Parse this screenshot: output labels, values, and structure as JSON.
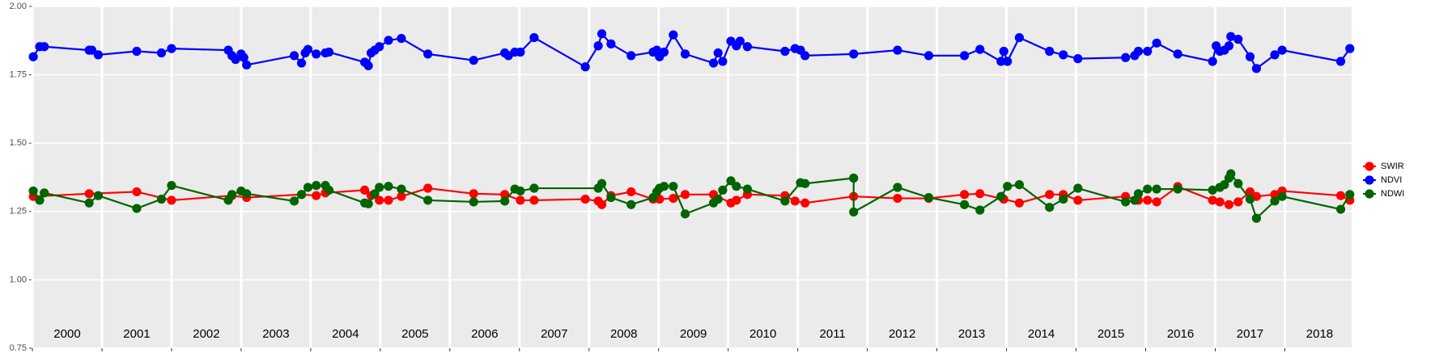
{
  "chart_data": {
    "type": "line",
    "xlim": [
      2000.0,
      2018.96
    ],
    "xticks": [
      {
        "value": 2000,
        "label": "2000"
      },
      {
        "value": 2001,
        "label": "2001"
      },
      {
        "value": 2002,
        "label": "2002"
      },
      {
        "value": 2003,
        "label": "2003"
      },
      {
        "value": 2004,
        "label": "2004"
      },
      {
        "value": 2005,
        "label": "2005"
      },
      {
        "value": 2006,
        "label": "2006"
      },
      {
        "value": 2007,
        "label": "2007"
      },
      {
        "value": 2008,
        "label": "2008"
      },
      {
        "value": 2009,
        "label": "2009"
      },
      {
        "value": 2010,
        "label": "2010"
      },
      {
        "value": 2011,
        "label": "2011"
      },
      {
        "value": 2012,
        "label": "2012"
      },
      {
        "value": 2013,
        "label": "2013"
      },
      {
        "value": 2014,
        "label": "2014"
      },
      {
        "value": 2015,
        "label": "2015"
      },
      {
        "value": 2016,
        "label": "2016"
      },
      {
        "value": 2017,
        "label": "2017"
      },
      {
        "value": 2018,
        "label": "2018"
      }
    ],
    "ylim": [
      0.75,
      2.0
    ],
    "yticks": [
      {
        "value": 0.75,
        "label": "0.75"
      },
      {
        "value": 1.0,
        "label": "1.00"
      },
      {
        "value": 1.25,
        "label": "1.25"
      },
      {
        "value": 1.5,
        "label": "1.50"
      },
      {
        "value": 1.75,
        "label": "1.75"
      },
      {
        "value": 2.0,
        "label": "2.00"
      }
    ],
    "grid": true,
    "legend": "right",
    "series": [
      {
        "name": "SWIR",
        "color": "#ff0000",
        "x": [
          2000.013,
          2000.816,
          2001.5,
          2002.0,
          2002.868,
          2003.079,
          2003.868,
          2004.079,
          2004.211,
          2004.776,
          2004.868,
          2004.987,
          2005.118,
          2005.303,
          2005.684,
          2006.342,
          2006.789,
          2007.013,
          2007.211,
          2007.947,
          2008.132,
          2008.184,
          2008.316,
          2008.605,
          2008.921,
          2009.013,
          2009.211,
          2009.382,
          2009.789,
          2010.039,
          2010.118,
          2010.276,
          2010.816,
          2010.961,
          2011.105,
          2011.803,
          2012.434,
          2012.882,
          2013.395,
          2013.618,
          2013.961,
          2014.184,
          2014.618,
          2014.816,
          2015.026,
          2015.711,
          2015.895,
          2016.026,
          2016.158,
          2016.461,
          2016.961,
          2017.066,
          2017.197,
          2017.329,
          2017.5,
          2017.592,
          2017.855,
          2017.961,
          2018.803,
          2018.934
        ],
        "values": [
          1.305,
          1.315,
          1.322,
          1.291,
          1.308,
          1.301,
          1.312,
          1.308,
          1.318,
          1.328,
          1.308,
          1.291,
          1.291,
          1.305,
          1.335,
          1.315,
          1.312,
          1.291,
          1.291,
          1.295,
          1.288,
          1.275,
          1.308,
          1.322,
          1.295,
          1.295,
          1.298,
          1.312,
          1.312,
          1.281,
          1.291,
          1.312,
          1.308,
          1.288,
          1.281,
          1.305,
          1.298,
          1.298,
          1.312,
          1.315,
          1.295,
          1.281,
          1.312,
          1.312,
          1.291,
          1.305,
          1.291,
          1.291,
          1.285,
          1.341,
          1.291,
          1.285,
          1.275,
          1.285,
          1.322,
          1.305,
          1.312,
          1.325,
          1.308,
          1.291
        ]
      },
      {
        "name": "NDVI",
        "color": "#0000ff",
        "x": [
          2000.013,
          2000.105,
          2000.171,
          2000.816,
          2000.855,
          2000.947,
          2001.5,
          2001.855,
          2002.0,
          2002.816,
          2002.868,
          2002.921,
          2003.0,
          2003.039,
          2003.079,
          2003.763,
          2003.868,
          2003.921,
          2003.961,
          2004.079,
          2004.211,
          2004.263,
          2004.776,
          2004.829,
          2004.868,
          2004.921,
          2004.987,
          2005.118,
          2005.303,
          2005.684,
          2006.342,
          2006.789,
          2006.842,
          2006.934,
          2007.013,
          2007.211,
          2007.947,
          2008.132,
          2008.184,
          2008.316,
          2008.605,
          2008.921,
          2008.974,
          2009.013,
          2009.079,
          2009.211,
          2009.382,
          2009.789,
          2009.855,
          2009.921,
          2010.039,
          2010.118,
          2010.171,
          2010.276,
          2010.816,
          2010.961,
          2011.039,
          2011.105,
          2011.803,
          2012.434,
          2012.882,
          2013.395,
          2013.618,
          2013.921,
          2013.961,
          2014.013,
          2014.184,
          2014.618,
          2014.816,
          2015.026,
          2015.711,
          2015.842,
          2015.895,
          2016.026,
          2016.158,
          2016.461,
          2016.961,
          2017.013,
          2017.066,
          2017.132,
          2017.197,
          2017.224,
          2017.329,
          2017.5,
          2017.592,
          2017.855,
          2017.961,
          2018.803,
          2018.934
        ],
        "values": [
          1.816,
          1.853,
          1.853,
          1.84,
          1.84,
          1.823,
          1.836,
          1.83,
          1.846,
          1.84,
          1.82,
          1.806,
          1.826,
          1.813,
          1.786,
          1.82,
          1.793,
          1.83,
          1.843,
          1.826,
          1.83,
          1.833,
          1.796,
          1.783,
          1.83,
          1.84,
          1.853,
          1.876,
          1.883,
          1.826,
          1.803,
          1.83,
          1.82,
          1.833,
          1.833,
          1.886,
          1.779,
          1.856,
          1.9,
          1.863,
          1.82,
          1.833,
          1.84,
          1.816,
          1.833,
          1.896,
          1.826,
          1.793,
          1.83,
          1.799,
          1.873,
          1.856,
          1.873,
          1.853,
          1.836,
          1.846,
          1.84,
          1.82,
          1.826,
          1.84,
          1.82,
          1.82,
          1.843,
          1.799,
          1.836,
          1.799,
          1.886,
          1.836,
          1.823,
          1.809,
          1.813,
          1.82,
          1.836,
          1.836,
          1.866,
          1.826,
          1.799,
          1.856,
          1.836,
          1.84,
          1.856,
          1.89,
          1.88,
          1.816,
          1.773,
          1.823,
          1.84,
          1.799,
          1.846
        ]
      },
      {
        "name": "NDWI",
        "color": "#006400",
        "x": [
          2000.013,
          2000.105,
          2000.171,
          2000.816,
          2000.947,
          2001.5,
          2001.855,
          2002.0,
          2002.816,
          2002.868,
          2003.0,
          2003.079,
          2003.763,
          2003.868,
          2003.961,
          2004.079,
          2004.211,
          2004.263,
          2004.776,
          2004.829,
          2004.921,
          2004.987,
          2005.118,
          2005.303,
          2005.684,
          2006.342,
          2006.789,
          2006.934,
          2007.013,
          2007.211,
          2008.132,
          2008.184,
          2008.316,
          2008.605,
          2008.921,
          2008.974,
          2009.013,
          2009.079,
          2009.211,
          2009.382,
          2009.789,
          2009.855,
          2009.921,
          2010.039,
          2010.118,
          2010.276,
          2010.816,
          2011.039,
          2011.105,
          2011.803,
          2011.803,
          2012.434,
          2012.882,
          2013.395,
          2013.618,
          2013.921,
          2014.013,
          2014.184,
          2014.618,
          2014.816,
          2015.026,
          2015.711,
          2015.842,
          2015.895,
          2016.026,
          2016.158,
          2016.461,
          2016.961,
          2017.066,
          2017.132,
          2017.197,
          2017.224,
          2017.329,
          2017.5,
          2017.592,
          2017.855,
          2017.961,
          2018.803,
          2018.934
        ],
        "values": [
          1.325,
          1.291,
          1.318,
          1.281,
          1.308,
          1.261,
          1.295,
          1.345,
          1.291,
          1.312,
          1.325,
          1.315,
          1.288,
          1.312,
          1.338,
          1.345,
          1.345,
          1.328,
          1.281,
          1.278,
          1.315,
          1.338,
          1.342,
          1.332,
          1.291,
          1.285,
          1.288,
          1.332,
          1.325,
          1.335,
          1.335,
          1.352,
          1.301,
          1.275,
          1.301,
          1.322,
          1.335,
          1.342,
          1.342,
          1.241,
          1.281,
          1.295,
          1.328,
          1.362,
          1.342,
          1.332,
          1.288,
          1.355,
          1.352,
          1.372,
          1.248,
          1.338,
          1.301,
          1.275,
          1.255,
          1.305,
          1.342,
          1.348,
          1.265,
          1.295,
          1.335,
          1.285,
          1.291,
          1.315,
          1.332,
          1.332,
          1.332,
          1.328,
          1.338,
          1.348,
          1.372,
          1.388,
          1.352,
          1.295,
          1.225,
          1.288,
          1.305,
          1.258,
          1.312
        ]
      }
    ]
  }
}
